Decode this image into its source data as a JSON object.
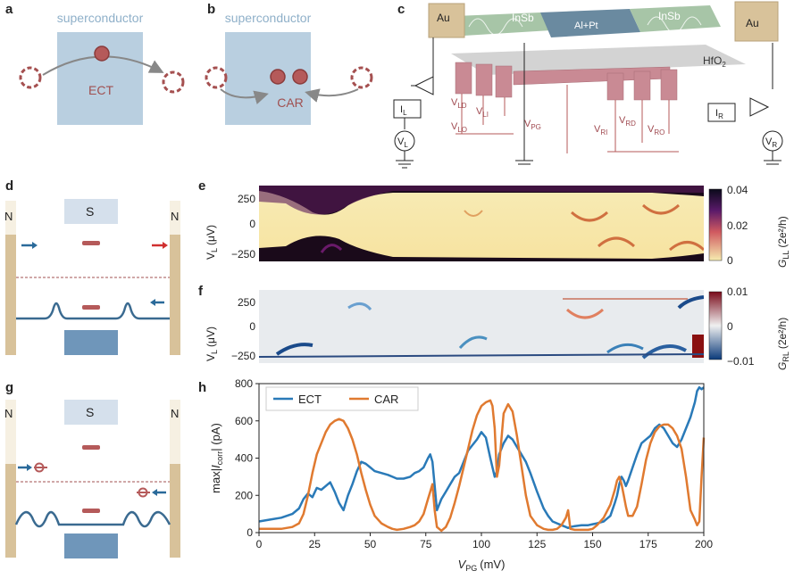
{
  "panels": {
    "a": "a",
    "b": "b",
    "c": "c",
    "d": "d",
    "e": "e",
    "f": "f",
    "g": "g",
    "h": "h"
  },
  "panel_a": {
    "sc_label": "superconductor",
    "process_label": "ECT"
  },
  "panel_b": {
    "sc_label": "superconductor",
    "process_label": "CAR"
  },
  "panel_c": {
    "au_left": "Au",
    "au_right": "Au",
    "insb_left": "InSb",
    "insb_right": "InSb",
    "alpt": "Al+Pt",
    "hfo2": "HfO",
    "hfo2_sub": "2",
    "gates": [
      {
        "main": "V",
        "sub": "LD"
      },
      {
        "main": "V",
        "sub": "LI"
      },
      {
        "main": "V",
        "sub": "LO"
      },
      {
        "main": "V",
        "sub": "PG"
      },
      {
        "main": "V",
        "sub": "RI"
      },
      {
        "main": "V",
        "sub": "RD"
      },
      {
        "main": "V",
        "sub": "RO"
      }
    ],
    "meters": [
      {
        "main": "I",
        "sub": "L"
      },
      {
        "main": "I",
        "sub": "R"
      },
      {
        "main": "V",
        "sub": "L"
      },
      {
        "main": "V",
        "sub": "R"
      }
    ]
  },
  "panel_d": {
    "left": "N",
    "center": "S",
    "right": "N"
  },
  "panel_g": {
    "left": "N",
    "center": "S",
    "right": "N"
  },
  "panel_e": {
    "ylabel_main": "V",
    "ylabel_sub": "L",
    "ylabel_unit": "(μV)",
    "yticks": [
      "250",
      "0",
      "−250"
    ],
    "cbar_label": "G",
    "cbar_sub": "LL",
    "cbar_unit": "(2e²/h)",
    "cbar_ticks": [
      "0.04",
      "0.02",
      "0"
    ]
  },
  "panel_f": {
    "ylabel_main": "V",
    "ylabel_sub": "L",
    "ylabel_unit": "(μV)",
    "yticks": [
      "250",
      "0",
      "−250"
    ],
    "cbar_label": "G",
    "cbar_sub": "RL",
    "cbar_unit": "(2e²/h)",
    "cbar_ticks": [
      "0.01",
      "0",
      "−0.01"
    ]
  },
  "colors": {
    "ect": "#2a7ab8",
    "car": "#e07a30",
    "dot": "#b55a5a",
    "sc_fill": "#b9cfe0",
    "lead": "#d8c29a"
  },
  "chart_data": {
    "type": "line",
    "xlabel": "V_PG (mV)",
    "ylabel": "max|I_corr| (pA)",
    "xlim": [
      0,
      200
    ],
    "ylim": [
      0,
      800
    ],
    "xticks": [
      0,
      25,
      50,
      75,
      100,
      125,
      150,
      175,
      200
    ],
    "yticks": [
      0,
      200,
      400,
      600,
      800
    ],
    "legend": "top-left",
    "x": [
      0,
      5,
      10,
      15,
      18,
      20,
      22,
      24,
      26,
      28,
      30,
      32,
      34,
      36,
      38,
      40,
      42,
      44,
      46,
      48,
      50,
      52,
      55,
      58,
      60,
      62,
      65,
      68,
      70,
      72,
      74,
      76,
      77,
      78,
      79,
      80,
      82,
      84,
      86,
      88,
      90,
      92,
      94,
      96,
      98,
      100,
      102,
      104,
      105,
      106,
      107,
      108,
      110,
      112,
      114,
      116,
      118,
      120,
      122,
      125,
      128,
      130,
      132,
      134,
      136,
      138,
      139,
      140,
      142,
      145,
      148,
      150,
      152,
      155,
      158,
      160,
      161,
      162,
      163,
      164,
      165,
      166,
      168,
      170,
      172,
      174,
      176,
      178,
      180,
      182,
      184,
      186,
      188,
      190,
      192,
      194,
      196,
      197,
      198,
      199,
      200
    ],
    "series": [
      {
        "name": "ECT",
        "values": [
          60,
          70,
          80,
          100,
          130,
          180,
          210,
          190,
          240,
          230,
          250,
          270,
          220,
          160,
          120,
          200,
          260,
          330,
          380,
          370,
          350,
          330,
          320,
          310,
          300,
          290,
          290,
          300,
          320,
          330,
          350,
          400,
          420,
          380,
          250,
          120,
          180,
          220,
          260,
          300,
          320,
          380,
          440,
          470,
          500,
          540,
          510,
          400,
          350,
          300,
          330,
          420,
          480,
          520,
          500,
          460,
          420,
          380,
          320,
          220,
          130,
          90,
          60,
          50,
          40,
          30,
          25,
          30,
          35,
          40,
          40,
          45,
          50,
          60,
          90,
          160,
          200,
          260,
          300,
          280,
          250,
          280,
          350,
          420,
          480,
          500,
          520,
          560,
          580,
          560,
          520,
          480,
          460,
          500,
          560,
          620,
          700,
          760,
          780,
          770,
          780
        ]
      },
      {
        "name": "CAR",
        "values": [
          20,
          20,
          20,
          30,
          50,
          100,
          200,
          320,
          420,
          480,
          540,
          580,
          600,
          610,
          600,
          560,
          500,
          420,
          320,
          230,
          150,
          90,
          50,
          30,
          20,
          15,
          20,
          30,
          40,
          60,
          100,
          180,
          220,
          260,
          120,
          30,
          10,
          30,
          80,
          160,
          250,
          350,
          450,
          550,
          630,
          680,
          700,
          710,
          680,
          560,
          300,
          360,
          640,
          690,
          650,
          520,
          360,
          200,
          90,
          40,
          20,
          15,
          15,
          20,
          40,
          80,
          120,
          20,
          15,
          15,
          15,
          20,
          40,
          80,
          150,
          230,
          280,
          300,
          260,
          200,
          140,
          90,
          90,
          140,
          260,
          390,
          480,
          540,
          570,
          580,
          580,
          560,
          520,
          450,
          300,
          120,
          70,
          40,
          60,
          300,
          510
        ]
      }
    ]
  }
}
